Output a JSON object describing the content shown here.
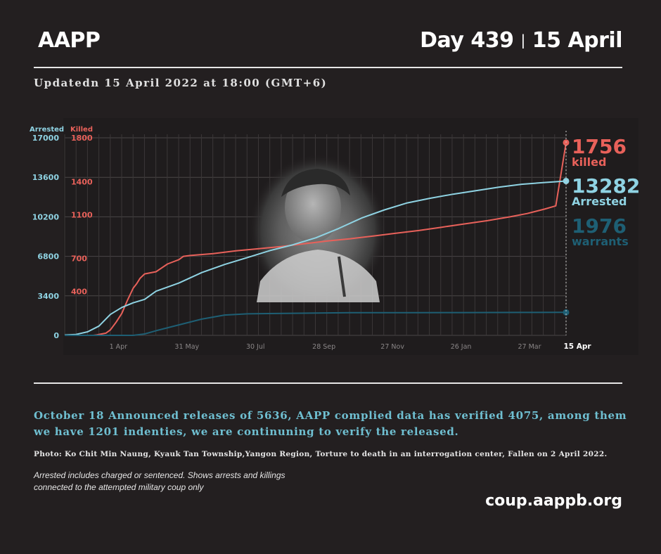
{
  "header": {
    "brand": "AAPP",
    "day_label": "Day 439",
    "separator": "|",
    "date": "15 April",
    "updated": "Updatedn 15 April 2022 at 18:00 (GMT+6)"
  },
  "chart_data": {
    "type": "line",
    "x_ticks": [
      "1 Apr",
      "31 May",
      "30 Jul",
      "28 Sep",
      "27 Nov",
      "26 Jan",
      "27 Mar",
      "15 Apr"
    ],
    "left_axis": {
      "label": "Arrested",
      "ticks": [
        17000,
        13600,
        10200,
        6800,
        3400,
        0
      ],
      "range": [
        0,
        17000
      ]
    },
    "right_axis": {
      "label": "Killed",
      "ticks": [
        1800,
        1400,
        1100,
        700,
        400
      ],
      "range": [
        0,
        1800
      ]
    },
    "x_range_days": [
      0,
      439
    ],
    "series": [
      {
        "name": "killed",
        "axis": "killed",
        "color": "#e8615a",
        "points": [
          [
            0,
            0
          ],
          [
            25,
            0
          ],
          [
            28,
            4
          ],
          [
            36,
            20
          ],
          [
            40,
            50
          ],
          [
            45,
            120
          ],
          [
            50,
            200
          ],
          [
            55,
            320
          ],
          [
            60,
            430
          ],
          [
            63,
            470
          ],
          [
            66,
            520
          ],
          [
            70,
            560
          ],
          [
            80,
            580
          ],
          [
            90,
            650
          ],
          [
            100,
            690
          ],
          [
            104,
            720
          ],
          [
            110,
            728
          ],
          [
            130,
            745
          ],
          [
            150,
            770
          ],
          [
            170,
            790
          ],
          [
            190,
            810
          ],
          [
            210,
            835
          ],
          [
            230,
            860
          ],
          [
            250,
            880
          ],
          [
            270,
            905
          ],
          [
            290,
            930
          ],
          [
            310,
            955
          ],
          [
            330,
            985
          ],
          [
            350,
            1015
          ],
          [
            370,
            1045
          ],
          [
            390,
            1080
          ],
          [
            405,
            1110
          ],
          [
            420,
            1150
          ],
          [
            430,
            1180
          ],
          [
            439,
            1756
          ]
        ]
      },
      {
        "name": "arrested",
        "axis": "arrested",
        "color": "#8fd3e3",
        "points": [
          [
            0,
            30
          ],
          [
            10,
            80
          ],
          [
            20,
            300
          ],
          [
            30,
            800
          ],
          [
            40,
            1800
          ],
          [
            50,
            2400
          ],
          [
            60,
            2800
          ],
          [
            70,
            3100
          ],
          [
            80,
            3800
          ],
          [
            100,
            4500
          ],
          [
            120,
            5400
          ],
          [
            140,
            6100
          ],
          [
            160,
            6700
          ],
          [
            180,
            7300
          ],
          [
            200,
            7800
          ],
          [
            220,
            8400
          ],
          [
            240,
            9200
          ],
          [
            260,
            10100
          ],
          [
            280,
            10800
          ],
          [
            300,
            11400
          ],
          [
            320,
            11800
          ],
          [
            340,
            12150
          ],
          [
            360,
            12450
          ],
          [
            380,
            12750
          ],
          [
            400,
            13000
          ],
          [
            420,
            13150
          ],
          [
            439,
            13282
          ]
        ]
      },
      {
        "name": "warrants",
        "axis": "arrested",
        "color": "#1e5f74",
        "points": [
          [
            0,
            0
          ],
          [
            60,
            0
          ],
          [
            70,
            120
          ],
          [
            80,
            400
          ],
          [
            100,
            900
          ],
          [
            120,
            1400
          ],
          [
            140,
            1750
          ],
          [
            160,
            1850
          ],
          [
            200,
            1900
          ],
          [
            250,
            1950
          ],
          [
            300,
            1950
          ],
          [
            350,
            1960
          ],
          [
            400,
            1970
          ],
          [
            439,
            1976
          ]
        ]
      }
    ]
  },
  "stats": {
    "killed": {
      "value": "1756",
      "label": "killed",
      "color": "#e8615a"
    },
    "arrested": {
      "value": "13282",
      "label": "Arrested",
      "color": "#8fd3e3"
    },
    "warrants": {
      "value": "1976",
      "label": "warrants",
      "color": "#1e5f74"
    }
  },
  "announcement": "October 18 Announced releases of 5636, AAPP complied data has verified 4075, among them we have 1201 indenties, we are continuning to verify the released.",
  "photo_caption": "Photo: Ko Chit Min Naung, Kyauk Tan Township,Yangon Region, Torture to death in an interrogation center, Fallen on 2 April 2022.",
  "note_lines": [
    "Arrested includes charged or sentenced. Shows arrests and killings",
    "connected to the attempted military coup only"
  ],
  "url": "coup.aappb.org"
}
